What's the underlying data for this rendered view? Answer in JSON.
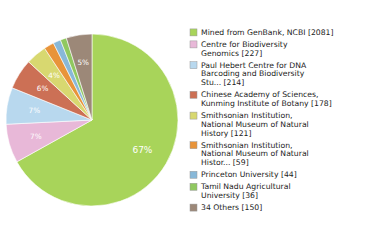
{
  "chart_data": {
    "type": "pie",
    "categories": [
      "Mined from GenBank, NCBI [2081]",
      "Centre for Biodiversity\nGenomics [227]",
      "Paul Hebert Centre for DNA\nBarcoding and Biodiversity\nStu... [214]",
      "Chinese Academy of Sciences,\nKunming Institute of Botany [178]",
      "Smithsonian Institution,\nNational Museum of Natural\nHistory [121]",
      "Smithsonian Institution,\nNational Museum of Natural\nHistor... [59]",
      "Princeton University [44]",
      "Tamil Nadu Agricultural\nUniversity [36]",
      "34 Others [150]"
    ],
    "values": [
      2081,
      227,
      214,
      178,
      121,
      59,
      44,
      36,
      150
    ],
    "percentages": [
      67,
      7,
      7,
      6,
      4,
      null,
      null,
      null,
      5
    ],
    "percentage_labels": [
      "67%",
      "7%",
      "7%",
      "6%",
      "4%",
      null,
      null,
      null,
      "5%"
    ],
    "colors": [
      "#a8d45a",
      "#e8b8d8",
      "#b8d8ee",
      "#cc7055",
      "#d8d870",
      "#e8943a",
      "#88b8d8",
      "#90c860",
      "#9c8878"
    ],
    "legend": "right"
  }
}
